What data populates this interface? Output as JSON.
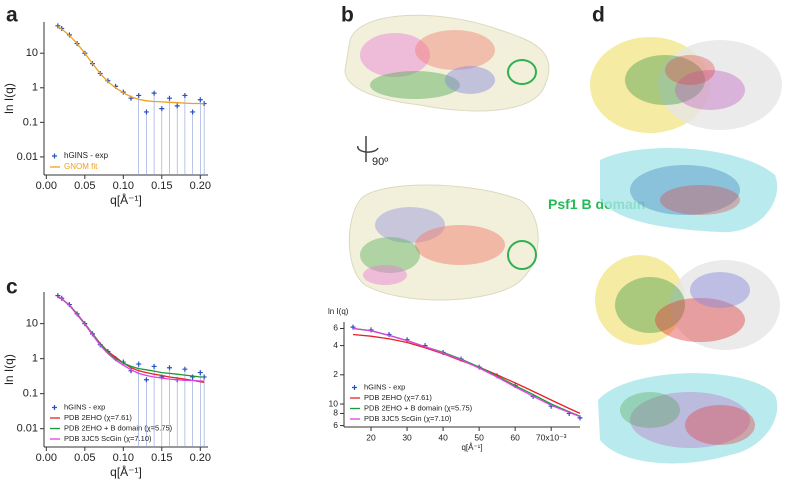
{
  "panels": [
    "a",
    "b",
    "c",
    "d"
  ],
  "annotations": {
    "rotation": "90º",
    "domain_label": "Psf1 B domain"
  },
  "chart_data": [
    {
      "type": "scatter",
      "log": "y",
      "legend": "lower left",
      "xlabel": "q[Å⁻¹]",
      "ylabel": "ln I(q)",
      "xlim": [
        -0.003,
        0.21
      ],
      "ylim": [
        0.003,
        80
      ],
      "xticks": [
        {
          "value": 0,
          "label": "0.00"
        },
        {
          "value": 0.05,
          "label": "0.05"
        },
        {
          "value": 0.1,
          "label": "0.10"
        },
        {
          "value": 0.15,
          "label": "0.15"
        },
        {
          "value": 0.2,
          "label": "0.20"
        }
      ],
      "yticks": [
        0.01,
        0.1,
        1,
        10
      ],
      "x": [
        0.015,
        0.02,
        0.03,
        0.04,
        0.05,
        0.06,
        0.07,
        0.08,
        0.09,
        0.1,
        0.11,
        0.12,
        0.13,
        0.14,
        0.15,
        0.16,
        0.17,
        0.18,
        0.19,
        0.2,
        0.205
      ],
      "series": [
        {
          "name": "hGINS - exp",
          "type": "scatter",
          "color": "#2a4fbf",
          "values": [
            62,
            52,
            34,
            19,
            10,
            5,
            2.6,
            1.6,
            1.1,
            0.75,
            0.5,
            0.6,
            0.2,
            0.7,
            0.25,
            0.5,
            0.3,
            0.6,
            0.2,
            0.45,
            0.35
          ]
        },
        {
          "name": "GNOM fit",
          "type": "line",
          "color": "#f0a020",
          "values": [
            60,
            50,
            33,
            19,
            10,
            5,
            2.6,
            1.5,
            1.0,
            0.72,
            0.55,
            0.46,
            0.42,
            0.4,
            0.39,
            0.38,
            0.37,
            0.36,
            0.35,
            0.35,
            0.34
          ]
        }
      ]
    },
    {
      "type": "scatter",
      "log": "y",
      "legend": "lower left",
      "xlabel": "q[Å⁻¹]",
      "ylabel": "ln I(q)",
      "xlim": [
        -0.003,
        0.21
      ],
      "ylim": [
        0.003,
        80
      ],
      "xticks": [
        {
          "value": 0,
          "label": "0.00"
        },
        {
          "value": 0.05,
          "label": "0.05"
        },
        {
          "value": 0.1,
          "label": "0.10"
        },
        {
          "value": 0.15,
          "label": "0.15"
        },
        {
          "value": 0.2,
          "label": "0.20"
        }
      ],
      "yticks": [
        0.01,
        0.1,
        1,
        10
      ],
      "x": [
        0.015,
        0.02,
        0.03,
        0.04,
        0.05,
        0.06,
        0.07,
        0.08,
        0.09,
        0.1,
        0.11,
        0.12,
        0.13,
        0.14,
        0.15,
        0.16,
        0.17,
        0.18,
        0.19,
        0.2,
        0.205
      ],
      "series": [
        {
          "name": "hGINS - exp",
          "type": "scatter",
          "color": "#2a4fbf",
          "values": [
            63,
            53,
            35,
            19,
            10,
            5.1,
            2.5,
            1.6,
            1.0,
            0.8,
            0.45,
            0.7,
            0.25,
            0.6,
            0.3,
            0.55,
            0.25,
            0.5,
            0.3,
            0.4,
            0.3
          ]
        },
        {
          "name": "PDB 2EHO (χ=7.61)",
          "type": "line",
          "color": "#e8202a",
          "values": [
            58,
            50,
            34,
            19,
            10,
            5.2,
            2.7,
            1.6,
            1.1,
            0.75,
            0.55,
            0.45,
            0.4,
            0.36,
            0.33,
            0.3,
            0.28,
            0.26,
            0.24,
            0.22,
            0.21
          ]
        },
        {
          "name": "PDB 2EHO + B domain (χ=5.75)",
          "type": "line",
          "color": "#1a9a3a",
          "values": [
            60,
            51,
            34,
            19,
            10,
            5.1,
            2.6,
            1.5,
            1.0,
            0.75,
            0.6,
            0.52,
            0.48,
            0.44,
            0.4,
            0.38,
            0.36,
            0.34,
            0.32,
            0.3,
            0.3
          ]
        },
        {
          "name": "PDB 3JC5  ScGin (χ=7.10)",
          "type": "line",
          "color": "#e040e0",
          "values": [
            60,
            51,
            33,
            18,
            9.5,
            4.8,
            2.4,
            1.4,
            0.9,
            0.65,
            0.48,
            0.38,
            0.33,
            0.3,
            0.28,
            0.26,
            0.25,
            0.24,
            0.24,
            0.23,
            0.23
          ]
        }
      ]
    },
    {
      "type": "scatter",
      "log": "y",
      "legend": "lower left",
      "xlabel": "q[Å⁻¹]",
      "ylabel": "ln I(q)",
      "xlim": [
        0.0125,
        0.078
      ],
      "ylim": [
        5.8,
        70
      ],
      "xticks": [
        {
          "value": 0.02,
          "label": "20"
        },
        {
          "value": 0.03,
          "label": "30"
        },
        {
          "value": 0.04,
          "label": "40"
        },
        {
          "value": 0.05,
          "label": "50"
        },
        {
          "value": 0.06,
          "label": "60"
        },
        {
          "value": 0.07,
          "label": "70x10⁻³"
        }
      ],
      "yticks": [
        {
          "value": 60,
          "label": "6"
        },
        {
          "value": 40,
          "label": "4"
        },
        {
          "value": 20,
          "label": "2"
        },
        10,
        {
          "value": 8,
          "label": "8"
        },
        {
          "value": 6,
          "label": "6"
        }
      ],
      "x": [
        0.015,
        0.02,
        0.025,
        0.03,
        0.035,
        0.04,
        0.045,
        0.05,
        0.055,
        0.06,
        0.065,
        0.07,
        0.075,
        0.078
      ],
      "series": [
        {
          "name": "hGINS - exp",
          "type": "scatter",
          "color": "#2a4fbf",
          "values": [
            62,
            58,
            52,
            46,
            40,
            34,
            29,
            24,
            19.5,
            15.5,
            12,
            9.5,
            8,
            7.2
          ]
        },
        {
          "name": "PDB 2EHO (χ=7.61)",
          "type": "line",
          "color": "#e8202a",
          "values": [
            52,
            50,
            47,
            43,
            38,
            33,
            28,
            24,
            20,
            16.5,
            13.5,
            11,
            9,
            8
          ]
        },
        {
          "name": "PDB 2EHO + B domain (χ=5.75)",
          "type": "line",
          "color": "#1a9a3a",
          "values": [
            60,
            57,
            51,
            45,
            39,
            34,
            29,
            24,
            19.5,
            15.5,
            12.5,
            10,
            8.3,
            7.5
          ]
        },
        {
          "name": "PDB 3JC5  ScGin (χ=7.10)",
          "type": "line",
          "color": "#e040e0",
          "values": [
            60,
            57,
            51,
            45,
            39,
            33.5,
            28.5,
            23.5,
            19,
            15,
            12,
            9.7,
            8.2,
            7.4
          ]
        }
      ]
    }
  ]
}
